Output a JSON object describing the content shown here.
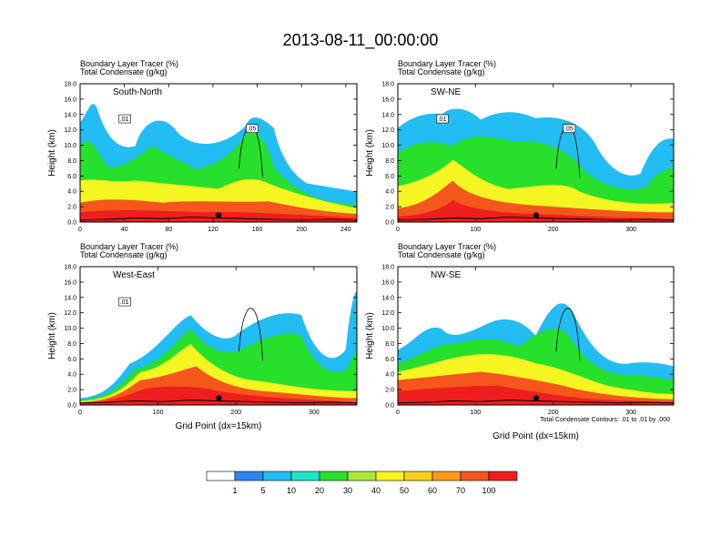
{
  "title": "2013-08-11_00:00:00",
  "panel_subtitle_line1": "Boundary Layer Tracer   (%)",
  "panel_subtitle_line2": "Total Condensate   (g/kg)",
  "ylabel": "Height (km)",
  "xlabel": "Grid Point (dx=15km)",
  "footnote": "Total Condensate Contours: .01 to .01 by .000",
  "colorbar": {
    "labels": [
      "1",
      "5",
      "10",
      "20",
      "30",
      "40",
      "50",
      "60",
      "70",
      "100"
    ],
    "colors": [
      "#ffffff",
      "#2a86f0",
      "#22bdf2",
      "#1fe5c8",
      "#27e02b",
      "#a9e83a",
      "#f5f521",
      "#f9cf1d",
      "#f99a17",
      "#f4561b",
      "#ee1e1e"
    ]
  },
  "chart_data": [
    {
      "type": "heatmap",
      "title": "South-North",
      "subtitle": [
        "Boundary Layer Tracer   (%)",
        "Total Condensate   (g/kg)"
      ],
      "ylabel": "Height (km)",
      "xlabel": "",
      "xlim": [
        0,
        250
      ],
      "ylim": [
        0,
        18
      ],
      "xticks": [
        0,
        40,
        80,
        120,
        160,
        200,
        240
      ],
      "yticks": [
        0.0,
        2.0,
        4.0,
        6.0,
        8.0,
        10.0,
        12.0,
        14.0,
        16.0,
        18.0
      ],
      "contour_labels": [
        ".01",
        ".05"
      ],
      "marker_x": 125
    },
    {
      "type": "heatmap",
      "title": "SW-NE",
      "subtitle": [
        "Boundary Layer Tracer   (%)",
        "Total Condensate   (g/kg)"
      ],
      "ylabel": "Height (km)",
      "xlabel": "",
      "xlim": [
        0,
        355
      ],
      "ylim": [
        0,
        18
      ],
      "xticks": [
        0,
        100,
        200,
        300
      ],
      "yticks": [
        0.0,
        2.0,
        4.0,
        6.0,
        8.0,
        10.0,
        12.0,
        14.0,
        16.0,
        18.0
      ],
      "contour_labels": [
        ".01",
        ".05"
      ],
      "marker_x": 178
    },
    {
      "type": "heatmap",
      "title": "West-East",
      "subtitle": [
        "Boundary Layer Tracer   (%)",
        "Total Condensate   (g/kg)"
      ],
      "ylabel": "Height (km)",
      "xlabel": "Grid Point (dx=15km)",
      "xlim": [
        0,
        355
      ],
      "ylim": [
        0,
        18
      ],
      "xticks": [
        0,
        100,
        200,
        300
      ],
      "yticks": [
        0.0,
        2.0,
        4.0,
        6.0,
        8.0,
        10.0,
        12.0,
        14.0,
        16.0,
        18.0
      ],
      "contour_labels": [
        ".01"
      ],
      "marker_x": 178
    },
    {
      "type": "heatmap",
      "title": "NW-SE",
      "subtitle": [
        "Boundary Layer Tracer   (%)",
        "Total Condensate   (g/kg)"
      ],
      "ylabel": "Height (km)",
      "xlabel": "Grid Point (dx=15km)",
      "xlim": [
        0,
        355
      ],
      "ylim": [
        0,
        18
      ],
      "xticks": [
        0,
        100,
        200,
        300
      ],
      "yticks": [
        0.0,
        2.0,
        4.0,
        6.0,
        8.0,
        10.0,
        12.0,
        14.0,
        16.0,
        18.0
      ],
      "contour_labels": [],
      "marker_x": 178
    }
  ]
}
